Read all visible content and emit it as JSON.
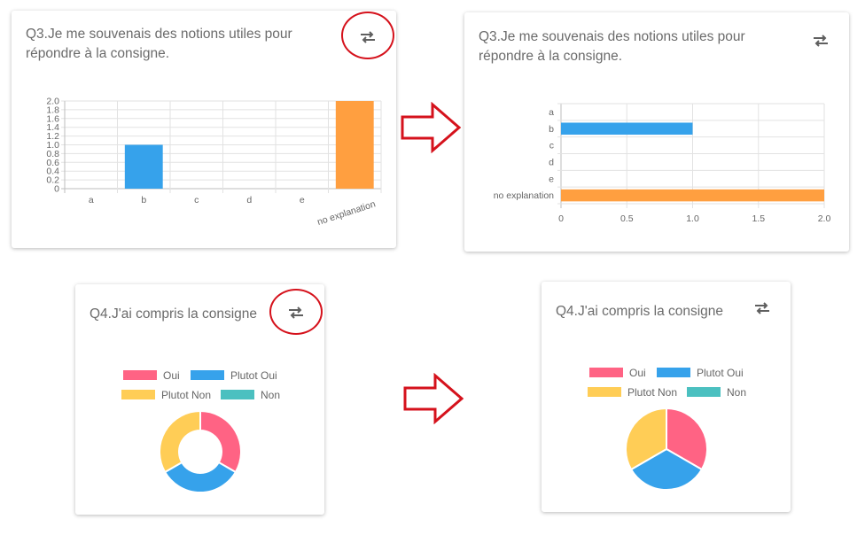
{
  "cards": {
    "q3_vertical": {
      "title_line1": "Q3.Je me souvenais des notions utiles pour",
      "title_line2": "répondre à la consigne.",
      "swap_icon": "swap-horizontal-icon"
    },
    "q3_horizontal": {
      "title_line1": "Q3.Je me souvenais des notions utiles pour",
      "title_line2": "répondre à la consigne.",
      "swap_icon": "swap-horizontal-icon"
    },
    "q4_doughnut": {
      "title": "Q4.J'ai compris la consigne",
      "swap_icon": "swap-horizontal-icon"
    },
    "q4_pie": {
      "title": "Q4.J'ai compris la consigne",
      "swap_icon": "swap-horizontal-icon"
    }
  },
  "annotations": {
    "highlight_color": "#d5121c",
    "arrow_icon": "right-arrow-icon"
  },
  "chart_data": [
    {
      "id": "q3_vertical",
      "type": "bar",
      "orientation": "vertical",
      "categories": [
        "a",
        "b",
        "c",
        "d",
        "e",
        "no explanation"
      ],
      "values": [
        0,
        1,
        0,
        0,
        0,
        2
      ],
      "colors": [
        "#36a2eb",
        "#36a2eb",
        "#36a2eb",
        "#36a2eb",
        "#36a2eb",
        "#ff9f40"
      ],
      "ylim": [
        0,
        2
      ],
      "y_ticks": [
        "0",
        "0.2",
        "0.4",
        "0.6",
        "0.8",
        "1.0",
        "1.2",
        "1.4",
        "1.6",
        "1.8",
        "2.0"
      ],
      "grid": true,
      "xlabel": "",
      "ylabel": ""
    },
    {
      "id": "q3_horizontal",
      "type": "bar",
      "orientation": "horizontal",
      "categories": [
        "a",
        "b",
        "c",
        "d",
        "e",
        "no explanation"
      ],
      "values": [
        0,
        1,
        0,
        0,
        0,
        2
      ],
      "colors": [
        "#36a2eb",
        "#36a2eb",
        "#36a2eb",
        "#36a2eb",
        "#36a2eb",
        "#ff9f40"
      ],
      "xlim": [
        0,
        2
      ],
      "x_ticks": [
        "0",
        "0.5",
        "1.0",
        "1.5",
        "2.0"
      ],
      "grid": true,
      "xlabel": "",
      "ylabel": ""
    },
    {
      "id": "q4_doughnut",
      "type": "pie",
      "variant": "doughnut",
      "labels": [
        "Oui",
        "Plutot Oui",
        "Plutot Non",
        "Non"
      ],
      "values": [
        1,
        1,
        1,
        0
      ],
      "colors": [
        "#ff6384",
        "#36a2eb",
        "#ffcd56",
        "#4bc0c0"
      ],
      "legend": "top"
    },
    {
      "id": "q4_pie",
      "type": "pie",
      "variant": "pie",
      "labels": [
        "Oui",
        "Plutot Oui",
        "Plutot Non",
        "Non"
      ],
      "values": [
        1,
        1,
        1,
        0
      ],
      "colors": [
        "#ff6384",
        "#36a2eb",
        "#ffcd56",
        "#4bc0c0"
      ],
      "legend": "top"
    }
  ]
}
